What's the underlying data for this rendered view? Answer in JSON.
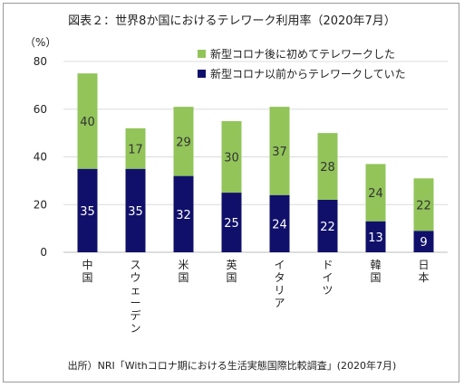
{
  "chart_data": {
    "type": "bar",
    "stacked": true,
    "title": "図表２：世界8か国におけるテレワーク利用率（2020年7月）",
    "ylabel": "（%）",
    "ylim": [
      0,
      80
    ],
    "yticks": [
      0,
      20,
      40,
      60,
      80
    ],
    "grid": true,
    "legend_position": "top-right",
    "categories": [
      "中国",
      "スウェーデン",
      "米国",
      "英国",
      "イタリア",
      "ドイツ",
      "韓国",
      "日本"
    ],
    "series": [
      {
        "name": "新型コロナ以前からテレワークしていた",
        "color": "#10106b",
        "label_color": "#ffffff",
        "values": [
          35,
          35,
          32,
          25,
          24,
          22,
          13,
          9
        ]
      },
      {
        "name": "新型コロナ後に初めてテレワークした",
        "color": "#92c45a",
        "label_color": "#333333",
        "values": [
          40,
          17,
          29,
          30,
          37,
          28,
          24,
          22
        ]
      }
    ],
    "legend_order": [
      1,
      0
    ],
    "source": "出所）NRI「Withコロナ期における生活実態国際比較調査」(2020年7月)"
  }
}
